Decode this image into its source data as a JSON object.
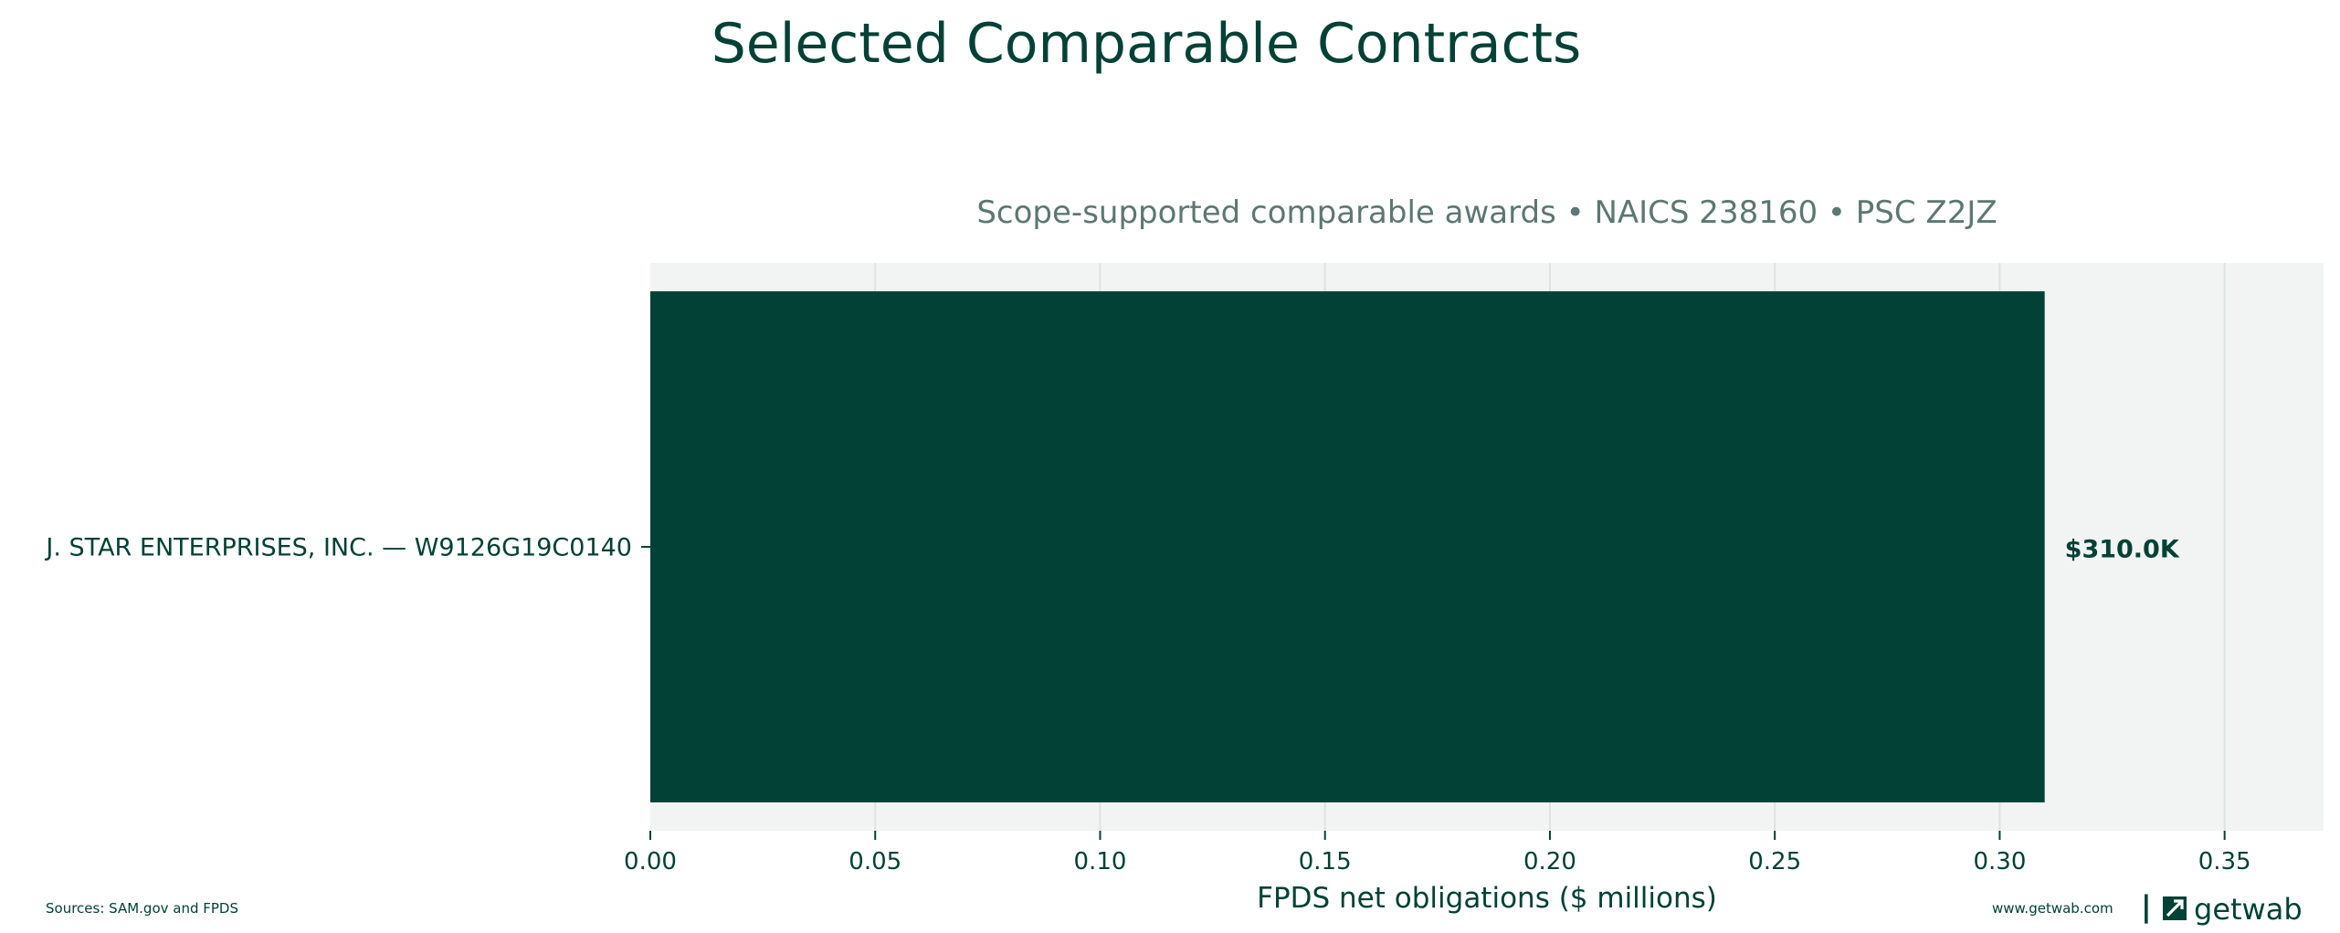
{
  "chart_data": {
    "type": "bar",
    "orientation": "horizontal",
    "title": "Selected Comparable Contracts",
    "subtitle": "Scope-supported comparable awards • NAICS 238160 • PSC Z2JZ",
    "xlabel": "FPDS net obligations ($ millions)",
    "ylabel": "",
    "xlim": [
      0,
      0.372
    ],
    "xticks": [
      0.0,
      0.05,
      0.1,
      0.15,
      0.2,
      0.25,
      0.3,
      0.35
    ],
    "xtick_labels": [
      "0.00",
      "0.05",
      "0.10",
      "0.15",
      "0.20",
      "0.25",
      "0.30",
      "0.35"
    ],
    "grid": "vertical",
    "categories": [
      "J. STAR ENTERPRISES, INC. — W9126G19C0140"
    ],
    "values": [
      0.31
    ],
    "data_labels": [
      "$310.0K"
    ],
    "colors": {
      "bar": "#024136",
      "plot_background": "#f2f4f3",
      "grid": "#dde3e1",
      "text": "#024136",
      "subtitle": "#5d7772"
    }
  },
  "footer": {
    "sources": "Sources: SAM.gov and FPDS",
    "website": "www.getwab.com",
    "separator": "|",
    "brand": "getwab",
    "brand_icon": "getwab-logo-icon"
  }
}
